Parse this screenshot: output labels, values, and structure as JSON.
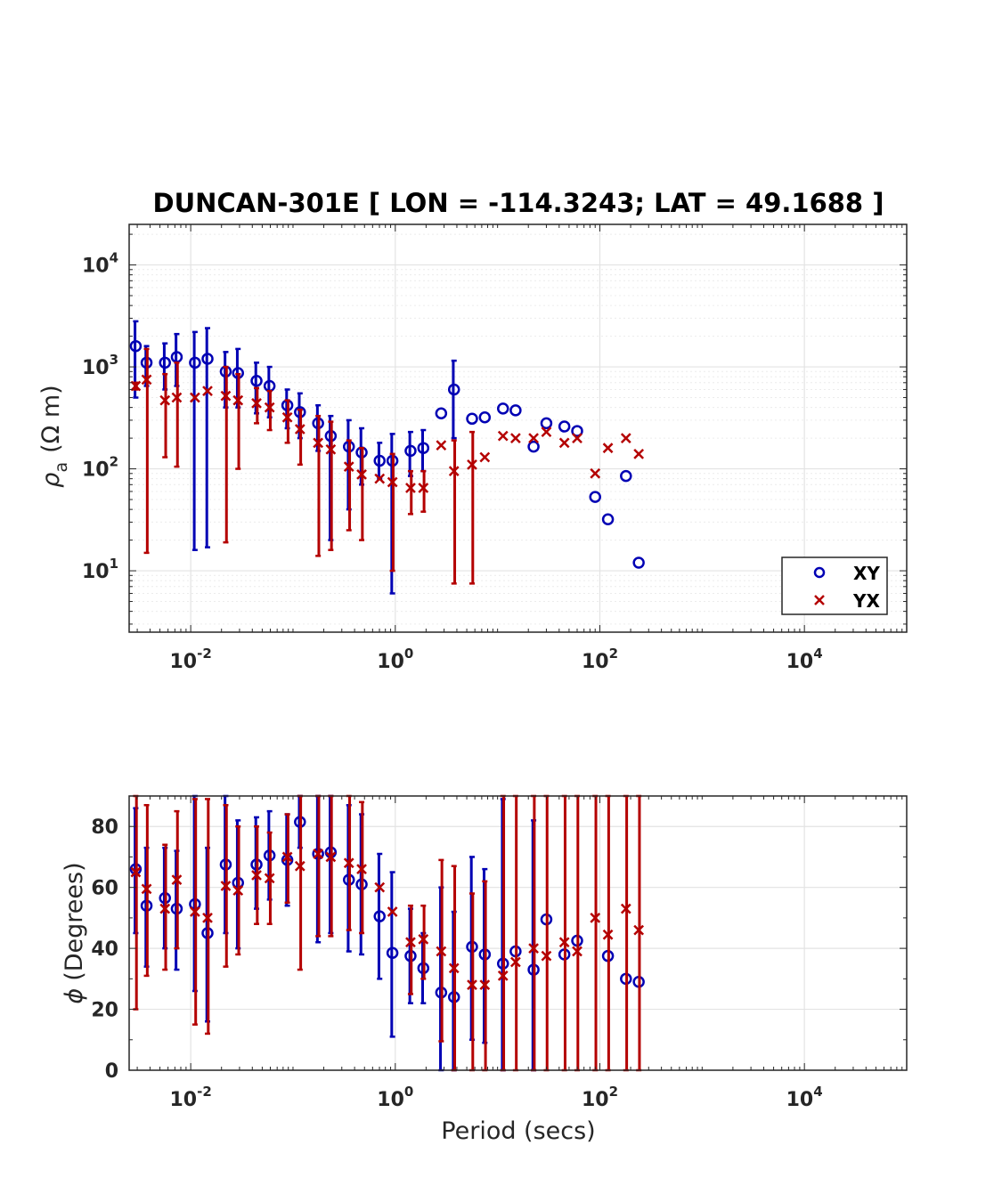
{
  "chart_data": [
    {
      "type": "scatter",
      "title": "DUNCAN-301E [ LON = -114.3243; LAT = 49.1688 ]",
      "xscale": "log",
      "yscale": "log",
      "xlabel": "",
      "ylabel_symbol": "ρ",
      "ylabel_sub": "a",
      "ylabel_unit": "(Ω m)",
      "xlim": [
        0.0025,
        100000
      ],
      "ylim": [
        2.5,
        25000
      ],
      "xticks": [
        {
          "base": "10",
          "exp": "-2",
          "value": 0.01
        },
        {
          "base": "10",
          "exp": "0",
          "value": 1
        },
        {
          "base": "10",
          "exp": "2",
          "value": 100
        },
        {
          "base": "10",
          "exp": "4",
          "value": 10000
        }
      ],
      "yticks": [
        {
          "base": "10",
          "exp": "1",
          "value": 10
        },
        {
          "base": "10",
          "exp": "2",
          "value": 100
        },
        {
          "base": "10",
          "exp": "3",
          "value": 1000
        },
        {
          "base": "10",
          "exp": "4",
          "value": 10000
        }
      ],
      "grid": true,
      "legend_position": "bottom-right",
      "series": [
        {
          "name": "XY",
          "marker": "circle",
          "color": "#0000b4",
          "points": [
            {
              "x": 0.0029,
              "y": 1600,
              "lo": 500,
              "hi": 2800
            },
            {
              "x": 0.0037,
              "y": 1100,
              "lo": 650,
              "hi": 1600
            },
            {
              "x": 0.0056,
              "y": 1100,
              "lo": 600,
              "hi": 1700
            },
            {
              "x": 0.0073,
              "y": 1250,
              "lo": 650,
              "hi": 2100
            },
            {
              "x": 0.011,
              "y": 1100,
              "lo": 16,
              "hi": 2200
            },
            {
              "x": 0.0146,
              "y": 1200,
              "lo": 17,
              "hi": 2400
            },
            {
              "x": 0.022,
              "y": 900,
              "lo": 400,
              "hi": 1400
            },
            {
              "x": 0.029,
              "y": 870,
              "lo": 400,
              "hi": 1500
            },
            {
              "x": 0.044,
              "y": 730,
              "lo": 350,
              "hi": 1100
            },
            {
              "x": 0.059,
              "y": 650,
              "lo": 320,
              "hi": 1000
            },
            {
              "x": 0.088,
              "y": 420,
              "lo": 250,
              "hi": 600
            },
            {
              "x": 0.117,
              "y": 360,
              "lo": 200,
              "hi": 550
            },
            {
              "x": 0.176,
              "y": 280,
              "lo": 150,
              "hi": 420
            },
            {
              "x": 0.234,
              "y": 210,
              "lo": 20,
              "hi": 330
            },
            {
              "x": 0.352,
              "y": 165,
              "lo": 40,
              "hi": 300
            },
            {
              "x": 0.469,
              "y": 145,
              "lo": 70,
              "hi": 250
            },
            {
              "x": 0.703,
              "y": 120,
              "lo": 80,
              "hi": 180
            },
            {
              "x": 0.938,
              "y": 120,
              "lo": 6,
              "hi": 220
            },
            {
              "x": 1.41,
              "y": 150,
              "lo": 85,
              "hi": 230
            },
            {
              "x": 1.88,
              "y": 160,
              "lo": 95,
              "hi": 240
            },
            {
              "x": 2.81,
              "y": 350,
              "lo": 350,
              "hi": 350
            },
            {
              "x": 3.75,
              "y": 600,
              "lo": 200,
              "hi": 1150
            },
            {
              "x": 5.63,
              "y": 310,
              "lo": 310,
              "hi": 310
            },
            {
              "x": 7.5,
              "y": 320,
              "lo": 320,
              "hi": 320
            },
            {
              "x": 11.3,
              "y": 390,
              "lo": 390,
              "hi": 390
            },
            {
              "x": 15,
              "y": 375,
              "lo": 375,
              "hi": 375
            },
            {
              "x": 22.5,
              "y": 165,
              "lo": 165,
              "hi": 165
            },
            {
              "x": 30,
              "y": 280,
              "lo": 280,
              "hi": 280
            },
            {
              "x": 45,
              "y": 260,
              "lo": 260,
              "hi": 260
            },
            {
              "x": 60,
              "y": 235,
              "lo": 235,
              "hi": 235
            },
            {
              "x": 90,
              "y": 53,
              "lo": 53,
              "hi": 53
            },
            {
              "x": 120,
              "y": 32,
              "lo": 32,
              "hi": 32
            },
            {
              "x": 180,
              "y": 85,
              "lo": 85,
              "hi": 85
            },
            {
              "x": 240,
              "y": 12,
              "lo": 12,
              "hi": 12
            }
          ]
        },
        {
          "name": "YX",
          "marker": "x",
          "color": "#b40000",
          "points": [
            {
              "x": 0.0029,
              "y": 650,
              "lo": 600,
              "hi": 700
            },
            {
              "x": 0.0037,
              "y": 750,
              "lo": 15,
              "hi": 1500
            },
            {
              "x": 0.0056,
              "y": 470,
              "lo": 130,
              "hi": 850
            },
            {
              "x": 0.0073,
              "y": 500,
              "lo": 105,
              "hi": 1100
            },
            {
              "x": 0.011,
              "y": 500,
              "lo": 500,
              "hi": 500
            },
            {
              "x": 0.0146,
              "y": 580,
              "lo": 580,
              "hi": 580
            },
            {
              "x": 0.022,
              "y": 520,
              "lo": 19,
              "hi": 1000
            },
            {
              "x": 0.029,
              "y": 470,
              "lo": 100,
              "hi": 850
            },
            {
              "x": 0.044,
              "y": 440,
              "lo": 280,
              "hi": 620
            },
            {
              "x": 0.059,
              "y": 400,
              "lo": 240,
              "hi": 580
            },
            {
              "x": 0.088,
              "y": 320,
              "lo": 180,
              "hi": 470
            },
            {
              "x": 0.117,
              "y": 245,
              "lo": 110,
              "hi": 380
            },
            {
              "x": 0.176,
              "y": 180,
              "lo": 14,
              "hi": 330
            },
            {
              "x": 0.234,
              "y": 155,
              "lo": 16,
              "hi": 290
            },
            {
              "x": 0.352,
              "y": 105,
              "lo": 25,
              "hi": 190
            },
            {
              "x": 0.469,
              "y": 88,
              "lo": 20,
              "hi": 160
            },
            {
              "x": 0.703,
              "y": 80,
              "lo": 80,
              "hi": 80
            },
            {
              "x": 0.938,
              "y": 74,
              "lo": 10,
              "hi": 140
            },
            {
              "x": 1.41,
              "y": 65,
              "lo": 36,
              "hi": 95
            },
            {
              "x": 1.88,
              "y": 65,
              "lo": 38,
              "hi": 95
            },
            {
              "x": 2.81,
              "y": 170,
              "lo": 170,
              "hi": 170
            },
            {
              "x": 3.75,
              "y": 95,
              "lo": 7.5,
              "hi": 190
            },
            {
              "x": 5.63,
              "y": 110,
              "lo": 7.5,
              "hi": 230
            },
            {
              "x": 7.5,
              "y": 130,
              "lo": 130,
              "hi": 130
            },
            {
              "x": 11.3,
              "y": 210,
              "lo": 210,
              "hi": 210
            },
            {
              "x": 15,
              "y": 200,
              "lo": 200,
              "hi": 200
            },
            {
              "x": 22.5,
              "y": 200,
              "lo": 200,
              "hi": 200
            },
            {
              "x": 30,
              "y": 230,
              "lo": 230,
              "hi": 230
            },
            {
              "x": 45,
              "y": 180,
              "lo": 180,
              "hi": 180
            },
            {
              "x": 60,
              "y": 200,
              "lo": 200,
              "hi": 200
            },
            {
              "x": 90,
              "y": 90,
              "lo": 90,
              "hi": 90
            },
            {
              "x": 120,
              "y": 160,
              "lo": 160,
              "hi": 160
            },
            {
              "x": 180,
              "y": 200,
              "lo": 200,
              "hi": 200
            },
            {
              "x": 240,
              "y": 140,
              "lo": 140,
              "hi": 140
            }
          ]
        }
      ]
    },
    {
      "type": "scatter",
      "title": "",
      "xscale": "log",
      "yscale": "linear",
      "xlabel": "Period (secs)",
      "ylabel_symbol": "ϕ",
      "ylabel_unit": "(Degrees)",
      "xlim": [
        0.0025,
        100000
      ],
      "ylim": [
        0,
        90
      ],
      "xticks": [
        {
          "base": "10",
          "exp": "-2",
          "value": 0.01
        },
        {
          "base": "10",
          "exp": "0",
          "value": 1
        },
        {
          "base": "10",
          "exp": "2",
          "value": 100
        },
        {
          "base": "10",
          "exp": "4",
          "value": 10000
        }
      ],
      "yticks": [
        {
          "label": "0",
          "value": 0
        },
        {
          "label": "20",
          "value": 20
        },
        {
          "label": "40",
          "value": 40
        },
        {
          "label": "60",
          "value": 60
        },
        {
          "label": "80",
          "value": 80
        }
      ],
      "grid": true,
      "series": [
        {
          "name": "XY",
          "marker": "circle",
          "color": "#0000b4",
          "points": [
            {
              "x": 0.0029,
              "y": 66,
              "lo": 45,
              "hi": 86
            },
            {
              "x": 0.0037,
              "y": 54,
              "lo": 34,
              "hi": 73
            },
            {
              "x": 0.0056,
              "y": 56.5,
              "lo": 40,
              "hi": 73
            },
            {
              "x": 0.0073,
              "y": 53,
              "lo": 33,
              "hi": 72
            },
            {
              "x": 0.011,
              "y": 54.5,
              "lo": 26,
              "hi": 90
            },
            {
              "x": 0.0146,
              "y": 45,
              "lo": 16,
              "hi": 73
            },
            {
              "x": 0.022,
              "y": 67.5,
              "lo": 45,
              "hi": 90
            },
            {
              "x": 0.029,
              "y": 61.5,
              "lo": 40,
              "hi": 82
            },
            {
              "x": 0.044,
              "y": 67.5,
              "lo": 53,
              "hi": 83
            },
            {
              "x": 0.059,
              "y": 70.5,
              "lo": 56,
              "hi": 85
            },
            {
              "x": 0.088,
              "y": 69,
              "lo": 54,
              "hi": 84
            },
            {
              "x": 0.117,
              "y": 81.5,
              "lo": 73,
              "hi": 90
            },
            {
              "x": 0.176,
              "y": 71,
              "lo": 42,
              "hi": 90
            },
            {
              "x": 0.234,
              "y": 71.5,
              "lo": 45,
              "hi": 90
            },
            {
              "x": 0.352,
              "y": 62.5,
              "lo": 39,
              "hi": 87
            },
            {
              "x": 0.469,
              "y": 61,
              "lo": 38,
              "hi": 84
            },
            {
              "x": 0.703,
              "y": 50.5,
              "lo": 30,
              "hi": 71
            },
            {
              "x": 0.938,
              "y": 38.5,
              "lo": 11,
              "hi": 65
            },
            {
              "x": 1.41,
              "y": 37.5,
              "lo": 22,
              "hi": 53
            },
            {
              "x": 1.88,
              "y": 33.5,
              "lo": 22,
              "hi": 45
            },
            {
              "x": 2.81,
              "y": 25.5,
              "lo": 0,
              "hi": 60
            },
            {
              "x": 3.75,
              "y": 24,
              "lo": 0,
              "hi": 52
            },
            {
              "x": 5.63,
              "y": 40.5,
              "lo": 10,
              "hi": 70
            },
            {
              "x": 7.5,
              "y": 38,
              "lo": 9,
              "hi": 66
            },
            {
              "x": 11.3,
              "y": 35,
              "lo": 0,
              "hi": 89
            },
            {
              "x": 15,
              "y": 39,
              "lo": 39,
              "hi": 39
            },
            {
              "x": 22.5,
              "y": 33,
              "lo": 0,
              "hi": 82
            },
            {
              "x": 30,
              "y": 49.5,
              "lo": 49.5,
              "hi": 49.5
            },
            {
              "x": 45,
              "y": 38,
              "lo": 38,
              "hi": 38
            },
            {
              "x": 60,
              "y": 42.5,
              "lo": 42.5,
              "hi": 42.5
            },
            {
              "x": 120,
              "y": 37.5,
              "lo": 37.5,
              "hi": 37.5
            },
            {
              "x": 180,
              "y": 30,
              "lo": 30,
              "hi": 30
            },
            {
              "x": 240,
              "y": 29,
              "lo": 29,
              "hi": 29
            }
          ]
        },
        {
          "name": "YX",
          "marker": "x",
          "color": "#b40000",
          "points": [
            {
              "x": 0.0029,
              "y": 65,
              "lo": 20,
              "hi": 90
            },
            {
              "x": 0.0037,
              "y": 59.5,
              "lo": 31,
              "hi": 87
            },
            {
              "x": 0.0056,
              "y": 53,
              "lo": 33,
              "hi": 74
            },
            {
              "x": 0.0073,
              "y": 62.5,
              "lo": 40,
              "hi": 85
            },
            {
              "x": 0.011,
              "y": 52,
              "lo": 15,
              "hi": 89
            },
            {
              "x": 0.0146,
              "y": 50,
              "lo": 12,
              "hi": 89
            },
            {
              "x": 0.022,
              "y": 60.5,
              "lo": 34,
              "hi": 87
            },
            {
              "x": 0.029,
              "y": 59,
              "lo": 38,
              "hi": 80
            },
            {
              "x": 0.044,
              "y": 64,
              "lo": 48,
              "hi": 80
            },
            {
              "x": 0.059,
              "y": 63,
              "lo": 48,
              "hi": 78
            },
            {
              "x": 0.088,
              "y": 70,
              "lo": 55,
              "hi": 84
            },
            {
              "x": 0.117,
              "y": 67,
              "lo": 33,
              "hi": 90
            },
            {
              "x": 0.176,
              "y": 71,
              "lo": 44,
              "hi": 90
            },
            {
              "x": 0.234,
              "y": 70,
              "lo": 44,
              "hi": 90
            },
            {
              "x": 0.352,
              "y": 68,
              "lo": 46,
              "hi": 90
            },
            {
              "x": 0.469,
              "y": 66,
              "lo": 45,
              "hi": 88
            },
            {
              "x": 0.703,
              "y": 60,
              "lo": 60,
              "hi": 60
            },
            {
              "x": 0.938,
              "y": 52,
              "lo": 52,
              "hi": 52
            },
            {
              "x": 1.41,
              "y": 42,
              "lo": 25,
              "hi": 54
            },
            {
              "x": 1.88,
              "y": 43,
              "lo": 30,
              "hi": 54
            },
            {
              "x": 2.81,
              "y": 39,
              "lo": 9.5,
              "hi": 69
            },
            {
              "x": 3.75,
              "y": 33.5,
              "lo": 0,
              "hi": 67
            },
            {
              "x": 5.63,
              "y": 28,
              "lo": 0,
              "hi": 58
            },
            {
              "x": 7.5,
              "y": 28,
              "lo": 0,
              "hi": 62
            },
            {
              "x": 11.3,
              "y": 31,
              "lo": 0,
              "hi": 90
            },
            {
              "x": 15,
              "y": 35.5,
              "lo": 0,
              "hi": 90
            },
            {
              "x": 22.5,
              "y": 40,
              "lo": 0,
              "hi": 90
            },
            {
              "x": 30,
              "y": 37.5,
              "lo": 0,
              "hi": 90
            },
            {
              "x": 45,
              "y": 42,
              "lo": 0,
              "hi": 90
            },
            {
              "x": 60,
              "y": 39,
              "lo": 0,
              "hi": 90
            },
            {
              "x": 90,
              "y": 50,
              "lo": 0,
              "hi": 90
            },
            {
              "x": 120,
              "y": 44.5,
              "lo": 0,
              "hi": 90
            },
            {
              "x": 180,
              "y": 53,
              "lo": 0,
              "hi": 90
            },
            {
              "x": 240,
              "y": 46,
              "lo": 0,
              "hi": 90
            }
          ]
        }
      ]
    }
  ]
}
